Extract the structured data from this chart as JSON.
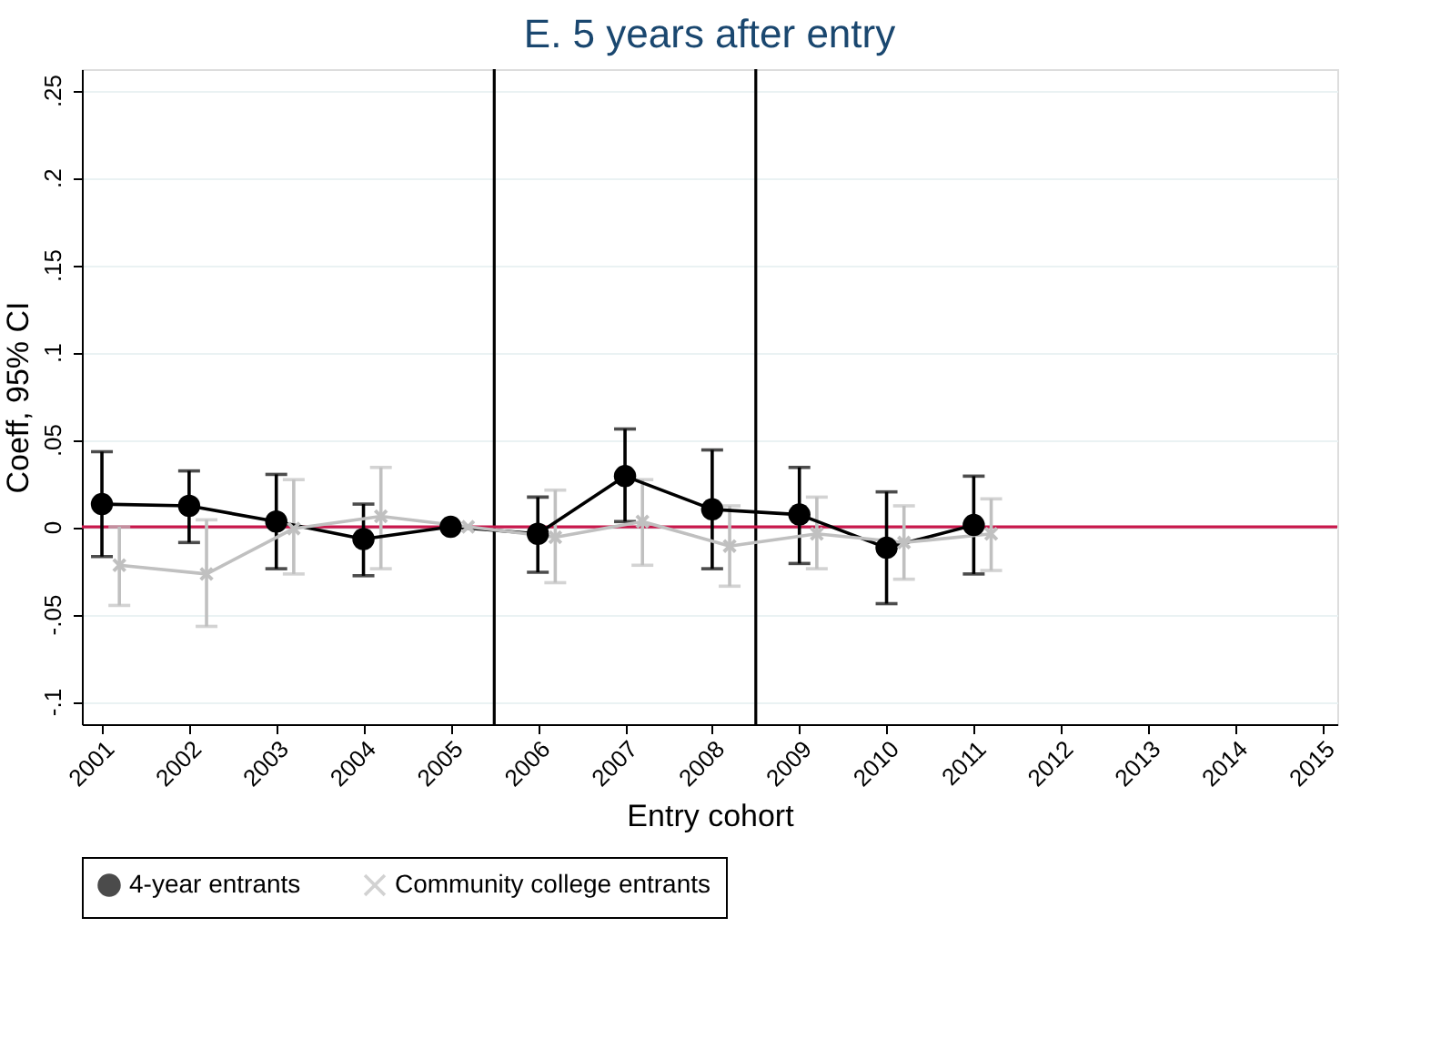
{
  "chart_data": {
    "type": "line",
    "title": "E. 5 years after entry",
    "xlabel": "Entry cohort",
    "ylabel": "Coeff, 95% CI",
    "xlim": [
      2000.77,
      2015.17
    ],
    "xticks": [
      2001,
      2002,
      2003,
      2004,
      2005,
      2006,
      2007,
      2008,
      2009,
      2010,
      2011,
      2012,
      2013,
      2014,
      2015
    ],
    "ylim": [
      -0.113,
      0.262
    ],
    "yticks": [
      {
        "value": -0.1,
        "label": "-.1"
      },
      {
        "value": -0.05,
        "label": "-.05"
      },
      {
        "value": 0,
        "label": "0"
      },
      {
        "value": 0.05,
        "label": ".05"
      },
      {
        "value": 0.1,
        "label": ".1"
      },
      {
        "value": 0.15,
        "label": ".15"
      },
      {
        "value": 0.2,
        "label": ".2"
      },
      {
        "value": 0.25,
        "label": ".25"
      }
    ],
    "grid": "y",
    "legend": "bottom",
    "ref_lines": [
      {
        "axis": "y",
        "value": 0,
        "color": "#c8174b"
      },
      {
        "axis": "x",
        "value": 2005.5,
        "color": "#000000"
      },
      {
        "axis": "x",
        "value": 2008.5,
        "color": "#000000"
      }
    ],
    "series": [
      {
        "name": "4-year entrants",
        "color": "#000000",
        "marker": "circle",
        "x": [
          2001,
          2002,
          2003,
          2004,
          2005,
          2006,
          2007,
          2008,
          2009,
          2010,
          2011
        ],
        "values": [
          0.013,
          0.012,
          0.003,
          -0.007,
          0,
          -0.004,
          0.029,
          0.01,
          0.007,
          -0.012,
          0.001
        ],
        "errors": [
          [
            -0.017,
            0.043
          ],
          [
            -0.009,
            0.032
          ],
          [
            -0.024,
            0.03
          ],
          [
            -0.028,
            0.013
          ],
          null,
          [
            -0.026,
            0.017
          ],
          [
            0.003,
            0.056
          ],
          [
            -0.024,
            0.044
          ],
          [
            -0.021,
            0.034
          ],
          [
            -0.044,
            0.02
          ],
          [
            -0.027,
            0.029
          ]
        ]
      },
      {
        "name": "Community college entrants",
        "color": "#c0c0c0",
        "marker": "cross",
        "x": [
          2001.2,
          2002.2,
          2003.2,
          2004.2,
          2005.2,
          2006.2,
          2007.2,
          2008.2,
          2009.2,
          2010.2,
          2011.2
        ],
        "values": [
          -0.022,
          -0.027,
          -0.001,
          0.006,
          0,
          -0.006,
          0.003,
          -0.011,
          -0.004,
          -0.009,
          -0.004
        ],
        "errors": [
          [
            -0.045,
            0
          ],
          [
            -0.057,
            0.004
          ],
          [
            -0.027,
            0.027
          ],
          [
            -0.024,
            0.034
          ],
          null,
          [
            -0.032,
            0.021
          ],
          [
            -0.022,
            0.027
          ],
          [
            -0.034,
            0.012
          ],
          [
            -0.024,
            0.017
          ],
          [
            -0.03,
            0.012
          ],
          [
            -0.025,
            0.016
          ]
        ]
      }
    ]
  }
}
